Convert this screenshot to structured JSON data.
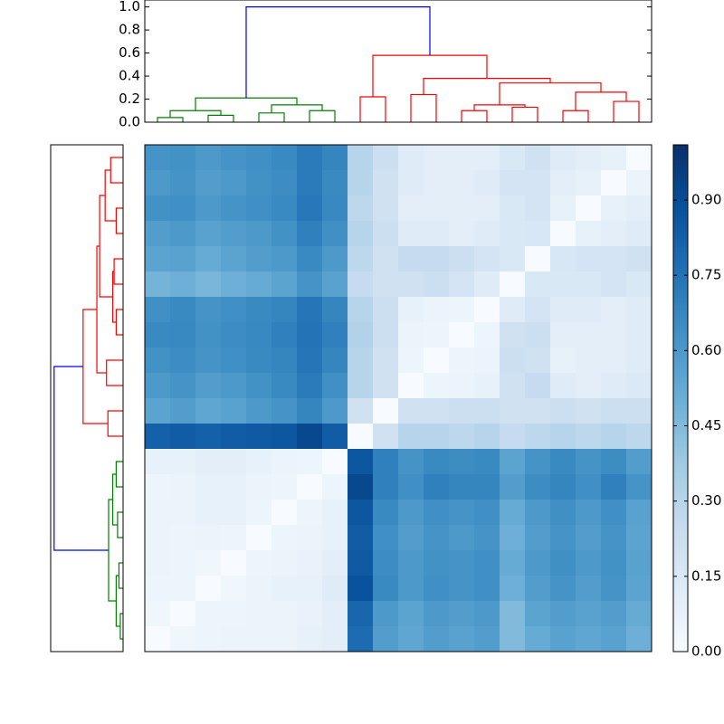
{
  "chart_data": [
    {
      "type": "dendrogram",
      "orientation": "top",
      "ylim": [
        0,
        1.06
      ],
      "yticks": [
        {
          "value": 0,
          "label": "0.0"
        },
        0.2,
        0.4,
        0.6,
        0.8,
        {
          "value": 1,
          "label": "1.0"
        }
      ],
      "links": [
        {
          "leaf": [
            0.5,
            0.5,
            1.5,
            1.5
          ],
          "height": [
            0,
            0.04,
            0.04,
            0
          ],
          "color": "#008000"
        },
        {
          "leaf": [
            2.5,
            2.5,
            3.5,
            3.5
          ],
          "height": [
            0,
            0.06,
            0.06,
            0
          ],
          "color": "#008000"
        },
        {
          "leaf": [
            1.0,
            1.0,
            3.0,
            3.0
          ],
          "height": [
            0.04,
            0.1,
            0.1,
            0.06
          ],
          "color": "#008000"
        },
        {
          "leaf": [
            4.5,
            4.5,
            5.5,
            5.5
          ],
          "height": [
            0,
            0.08,
            0.08,
            0
          ],
          "color": "#008000"
        },
        {
          "leaf": [
            6.5,
            6.5,
            7.5,
            7.5
          ],
          "height": [
            0,
            0.1,
            0.1,
            0
          ],
          "color": "#008000"
        },
        {
          "leaf": [
            5.0,
            5.0,
            7.0,
            7.0
          ],
          "height": [
            0.08,
            0.15,
            0.15,
            0.1
          ],
          "color": "#008000"
        },
        {
          "leaf": [
            2.0,
            2.0,
            6.0,
            6.0
          ],
          "height": [
            0.1,
            0.21,
            0.21,
            0.15
          ],
          "color": "#008000"
        },
        {
          "leaf": [
            8.5,
            8.5,
            9.5,
            9.5
          ],
          "height": [
            0,
            0.22,
            0.22,
            0
          ],
          "color": "#ff0000"
        },
        {
          "leaf": [
            10.5,
            10.5,
            11.5,
            11.5
          ],
          "height": [
            0,
            0.24,
            0.24,
            0
          ],
          "color": "#ff0000"
        },
        {
          "leaf": [
            12.5,
            12.5,
            13.5,
            13.5
          ],
          "height": [
            0,
            0.1,
            0.1,
            0
          ],
          "color": "#ff0000"
        },
        {
          "leaf": [
            14.5,
            14.5,
            15.5,
            15.5
          ],
          "height": [
            0,
            0.13,
            0.13,
            0
          ],
          "color": "#ff0000"
        },
        {
          "leaf": [
            13.0,
            13.0,
            15.0,
            15.0
          ],
          "height": [
            0.1,
            0.15,
            0.15,
            0.13
          ],
          "color": "#ff0000"
        },
        {
          "leaf": [
            16.5,
            16.5,
            17.5,
            17.5
          ],
          "height": [
            0,
            0.1,
            0.1,
            0
          ],
          "color": "#ff0000"
        },
        {
          "leaf": [
            18.5,
            18.5,
            19.5,
            19.5
          ],
          "height": [
            0,
            0.18,
            0.18,
            0
          ],
          "color": "#ff0000"
        },
        {
          "leaf": [
            17.0,
            17.0,
            19.0,
            19.0
          ],
          "height": [
            0.1,
            0.26,
            0.26,
            0.18
          ],
          "color": "#ff0000"
        },
        {
          "leaf": [
            14.0,
            14.0,
            18.0,
            18.0
          ],
          "height": [
            0.15,
            0.34,
            0.34,
            0.26
          ],
          "color": "#ff0000"
        },
        {
          "leaf": [
            11.0,
            11.0,
            16.0,
            16.0
          ],
          "height": [
            0.24,
            0.38,
            0.38,
            0.34
          ],
          "color": "#ff0000"
        },
        {
          "leaf": [
            9.0,
            9.0,
            13.5,
            13.5
          ],
          "height": [
            0.22,
            0.58,
            0.58,
            0.38
          ],
          "color": "#ff0000"
        },
        {
          "leaf": [
            4.0,
            4.0,
            11.25,
            11.25
          ],
          "height": [
            0.21,
            1.0,
            1.0,
            0.58
          ],
          "color": "#0000ff"
        }
      ]
    },
    {
      "type": "dendrogram",
      "orientation": "left",
      "xlim": [
        0,
        1.05
      ],
      "links": [
        {
          "leaf": [
            0.5,
            0.5,
            1.5,
            1.5
          ],
          "height": [
            0,
            0.04,
            0.04,
            0
          ],
          "color": "#008000"
        },
        {
          "leaf": [
            2.5,
            2.5,
            3.5,
            3.5
          ],
          "height": [
            0,
            0.06,
            0.06,
            0
          ],
          "color": "#008000"
        },
        {
          "leaf": [
            1.0,
            1.0,
            3.0,
            3.0
          ],
          "height": [
            0.04,
            0.1,
            0.1,
            0.06
          ],
          "color": "#008000"
        },
        {
          "leaf": [
            4.5,
            4.5,
            5.5,
            5.5
          ],
          "height": [
            0,
            0.08,
            0.08,
            0
          ],
          "color": "#008000"
        },
        {
          "leaf": [
            6.5,
            6.5,
            7.5,
            7.5
          ],
          "height": [
            0,
            0.1,
            0.1,
            0
          ],
          "color": "#008000"
        },
        {
          "leaf": [
            5.0,
            5.0,
            7.0,
            7.0
          ],
          "height": [
            0.08,
            0.15,
            0.15,
            0.1
          ],
          "color": "#008000"
        },
        {
          "leaf": [
            2.0,
            2.0,
            6.0,
            6.0
          ],
          "height": [
            0.1,
            0.21,
            0.21,
            0.15
          ],
          "color": "#008000"
        },
        {
          "leaf": [
            8.5,
            8.5,
            9.5,
            9.5
          ],
          "height": [
            0,
            0.22,
            0.22,
            0
          ],
          "color": "#ff0000"
        },
        {
          "leaf": [
            10.5,
            10.5,
            11.5,
            11.5
          ],
          "height": [
            0,
            0.24,
            0.24,
            0
          ],
          "color": "#ff0000"
        },
        {
          "leaf": [
            12.5,
            12.5,
            13.5,
            13.5
          ],
          "height": [
            0,
            0.1,
            0.1,
            0
          ],
          "color": "#ff0000"
        },
        {
          "leaf": [
            14.5,
            14.5,
            15.5,
            15.5
          ],
          "height": [
            0,
            0.13,
            0.13,
            0
          ],
          "color": "#ff0000"
        },
        {
          "leaf": [
            13.0,
            13.0,
            15.0,
            15.0
          ],
          "height": [
            0.1,
            0.15,
            0.15,
            0.13
          ],
          "color": "#ff0000"
        },
        {
          "leaf": [
            16.5,
            16.5,
            17.5,
            17.5
          ],
          "height": [
            0,
            0.1,
            0.1,
            0
          ],
          "color": "#ff0000"
        },
        {
          "leaf": [
            18.5,
            18.5,
            19.5,
            19.5
          ],
          "height": [
            0,
            0.18,
            0.18,
            0
          ],
          "color": "#ff0000"
        },
        {
          "leaf": [
            17.0,
            17.0,
            19.0,
            19.0
          ],
          "height": [
            0.1,
            0.26,
            0.26,
            0.18
          ],
          "color": "#ff0000"
        },
        {
          "leaf": [
            14.0,
            14.0,
            18.0,
            18.0
          ],
          "height": [
            0.15,
            0.34,
            0.34,
            0.26
          ],
          "color": "#ff0000"
        },
        {
          "leaf": [
            11.0,
            11.0,
            16.0,
            16.0
          ],
          "height": [
            0.24,
            0.38,
            0.38,
            0.34
          ],
          "color": "#ff0000"
        },
        {
          "leaf": [
            9.0,
            9.0,
            13.5,
            13.5
          ],
          "height": [
            0.22,
            0.58,
            0.58,
            0.38
          ],
          "color": "#ff0000"
        },
        {
          "leaf": [
            4.0,
            4.0,
            11.25,
            11.25
          ],
          "height": [
            0.21,
            1.0,
            1.0,
            0.58
          ],
          "color": "#0000ff"
        }
      ]
    },
    {
      "type": "heatmap",
      "clim": [
        0,
        1.01
      ],
      "colormap": [
        "#f7fbff",
        "#deebf7",
        "#c6dbef",
        "#9ecae1",
        "#6baed6",
        "#4292c6",
        "#2171b5",
        "#08519c",
        "#08306b"
      ],
      "colorbar_ticks": [
        {
          "value": 0,
          "label": "0.00"
        },
        {
          "value": 0.15,
          "label": "0.15"
        },
        {
          "value": 0.3,
          "label": "0.30"
        },
        {
          "value": 0.45,
          "label": "0.45"
        },
        {
          "value": 0.6,
          "label": "0.60"
        },
        {
          "value": 0.75,
          "label": "0.75"
        },
        {
          "value": 0.9,
          "label": "0.90"
        }
      ],
      "values": [
        [
          0.62,
          0.63,
          0.6,
          0.62,
          0.64,
          0.66,
          0.72,
          0.68,
          0.3,
          0.22,
          0.12,
          0.1,
          0.1,
          0.1,
          0.15,
          0.2,
          0.12,
          0.1,
          0.08,
          0.0
        ],
        [
          0.6,
          0.62,
          0.58,
          0.6,
          0.63,
          0.65,
          0.72,
          0.66,
          0.3,
          0.2,
          0.12,
          0.1,
          0.1,
          0.12,
          0.18,
          0.18,
          0.1,
          0.08,
          0.0,
          0.06
        ],
        [
          0.63,
          0.64,
          0.6,
          0.62,
          0.64,
          0.66,
          0.73,
          0.67,
          0.28,
          0.2,
          0.1,
          0.1,
          0.1,
          0.1,
          0.15,
          0.18,
          0.08,
          0.0,
          0.08,
          0.1
        ],
        [
          0.58,
          0.6,
          0.56,
          0.58,
          0.6,
          0.63,
          0.7,
          0.64,
          0.3,
          0.22,
          0.12,
          0.12,
          0.1,
          0.12,
          0.15,
          0.16,
          0.0,
          0.08,
          0.1,
          0.12
        ],
        [
          0.55,
          0.56,
          0.52,
          0.55,
          0.58,
          0.6,
          0.66,
          0.6,
          0.28,
          0.2,
          0.25,
          0.25,
          0.22,
          0.18,
          0.15,
          0.0,
          0.16,
          0.18,
          0.18,
          0.2
        ],
        [
          0.48,
          0.5,
          0.47,
          0.5,
          0.52,
          0.55,
          0.62,
          0.56,
          0.25,
          0.2,
          0.2,
          0.22,
          0.18,
          0.12,
          0.0,
          0.15,
          0.15,
          0.15,
          0.18,
          0.15
        ],
        [
          0.64,
          0.66,
          0.62,
          0.64,
          0.66,
          0.68,
          0.74,
          0.68,
          0.3,
          0.22,
          0.08,
          0.06,
          0.05,
          0.0,
          0.12,
          0.18,
          0.12,
          0.12,
          0.1,
          0.12
        ],
        [
          0.66,
          0.67,
          0.63,
          0.65,
          0.67,
          0.7,
          0.75,
          0.7,
          0.32,
          0.22,
          0.06,
          0.05,
          0.0,
          0.05,
          0.2,
          0.22,
          0.1,
          0.1,
          0.1,
          0.12
        ],
        [
          0.63,
          0.65,
          0.62,
          0.64,
          0.66,
          0.68,
          0.74,
          0.68,
          0.3,
          0.2,
          0.05,
          0.0,
          0.05,
          0.06,
          0.22,
          0.2,
          0.08,
          0.1,
          0.1,
          0.12
        ],
        [
          0.6,
          0.62,
          0.58,
          0.6,
          0.63,
          0.66,
          0.72,
          0.64,
          0.3,
          0.2,
          0.0,
          0.05,
          0.06,
          0.08,
          0.2,
          0.25,
          0.12,
          0.1,
          0.12,
          0.14
        ],
        [
          0.55,
          0.58,
          0.54,
          0.56,
          0.6,
          0.62,
          0.68,
          0.6,
          0.2,
          0.0,
          0.2,
          0.2,
          0.22,
          0.22,
          0.2,
          0.2,
          0.22,
          0.2,
          0.22,
          0.22
        ],
        [
          0.82,
          0.84,
          0.82,
          0.84,
          0.85,
          0.86,
          0.92,
          0.84,
          0.0,
          0.2,
          0.3,
          0.3,
          0.28,
          0.3,
          0.25,
          0.28,
          0.3,
          0.28,
          0.3,
          0.28
        ],
        [
          0.08,
          0.08,
          0.1,
          0.1,
          0.08,
          0.06,
          0.05,
          0.0,
          0.86,
          0.7,
          0.62,
          0.66,
          0.65,
          0.66,
          0.55,
          0.62,
          0.66,
          0.62,
          0.65,
          0.58
        ],
        [
          0.05,
          0.06,
          0.08,
          0.08,
          0.06,
          0.05,
          0.0,
          0.05,
          0.92,
          0.7,
          0.64,
          0.7,
          0.68,
          0.68,
          0.58,
          0.65,
          0.68,
          0.64,
          0.7,
          0.62
        ],
        [
          0.06,
          0.06,
          0.08,
          0.08,
          0.05,
          0.0,
          0.05,
          0.08,
          0.86,
          0.66,
          0.6,
          0.64,
          0.62,
          0.64,
          0.52,
          0.6,
          0.64,
          0.6,
          0.64,
          0.56
        ],
        [
          0.06,
          0.05,
          0.06,
          0.05,
          0.0,
          0.05,
          0.06,
          0.08,
          0.84,
          0.64,
          0.58,
          0.62,
          0.6,
          0.62,
          0.5,
          0.58,
          0.62,
          0.58,
          0.62,
          0.55
        ],
        [
          0.06,
          0.05,
          0.04,
          0.0,
          0.05,
          0.06,
          0.07,
          0.1,
          0.85,
          0.65,
          0.6,
          0.63,
          0.62,
          0.64,
          0.52,
          0.6,
          0.64,
          0.6,
          0.63,
          0.56
        ],
        [
          0.05,
          0.05,
          0.0,
          0.04,
          0.06,
          0.08,
          0.08,
          0.12,
          0.88,
          0.66,
          0.6,
          0.64,
          0.62,
          0.64,
          0.5,
          0.58,
          0.62,
          0.58,
          0.62,
          0.55
        ],
        [
          0.04,
          0.0,
          0.05,
          0.05,
          0.06,
          0.06,
          0.07,
          0.1,
          0.8,
          0.6,
          0.55,
          0.6,
          0.58,
          0.6,
          0.45,
          0.55,
          0.58,
          0.56,
          0.58,
          0.52
        ],
        [
          0.0,
          0.04,
          0.05,
          0.06,
          0.06,
          0.06,
          0.08,
          0.1,
          0.78,
          0.58,
          0.54,
          0.58,
          0.56,
          0.58,
          0.45,
          0.52,
          0.56,
          0.54,
          0.56,
          0.5
        ]
      ]
    }
  ]
}
